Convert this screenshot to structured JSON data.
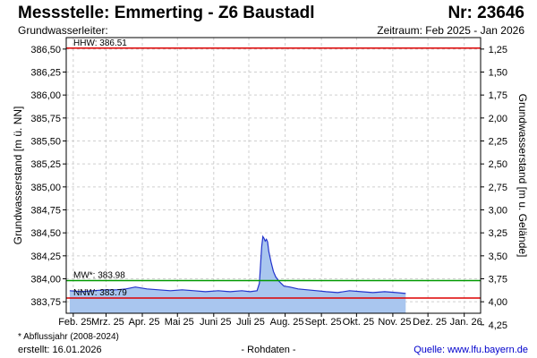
{
  "header": {
    "title": "Messstelle: Emmerting - Z6 Baustadl",
    "nr": "Nr: 23646",
    "subtitle": "Grundwasserleiter:",
    "period": "Zeitraum: Feb 2025 - Jan 2026"
  },
  "footer": {
    "footnote": "* Abflussjahr (2008-2024)",
    "created": "erstellt:  16.01.2026",
    "raw": "- Rohdaten -",
    "source": "Quelle:  www.lfu.bayern.de"
  },
  "colors": {
    "series_line": "#2233cc",
    "series_fill": "#a9c6ef",
    "hhw_line": "#dd0000",
    "nnw_line": "#dd0000",
    "mw_line": "#009900",
    "grid": "#cfcfcf"
  },
  "chart_data": {
    "type": "area",
    "ylabel": "Grundwasserstand [m ü. NN]",
    "ylabel_right": "Grundwasserstand [m u. Gelände]",
    "ylim": [
      383.625,
      386.625
    ],
    "y_ticks": [
      "383,75",
      "384,00",
      "384,25",
      "384,50",
      "384,75",
      "385,00",
      "385,25",
      "385,50",
      "385,75",
      "386,00",
      "386,25",
      "386,50"
    ],
    "y_tick_values": [
      383.75,
      384.0,
      384.25,
      384.5,
      384.75,
      385.0,
      385.25,
      385.5,
      385.75,
      386.0,
      386.25,
      386.5
    ],
    "y2_ticks": [
      "1,25",
      "1,50",
      "1,75",
      "2,00",
      "2,25",
      "2,50",
      "2,75",
      "3,00",
      "3,25",
      "3,50",
      "3,75",
      "4,00",
      "4,25"
    ],
    "y2_tick_values": [
      1.25,
      1.5,
      1.75,
      2.0,
      2.25,
      2.5,
      2.75,
      3.0,
      3.25,
      3.5,
      3.75,
      4.0,
      4.25
    ],
    "y2_surface_level": 387.75,
    "x_ticks": [
      "Feb. 25",
      "Mrz. 25",
      "Apr. 25",
      "Mai 25",
      "Juni 25",
      "Juli 25",
      "Aug. 25",
      "Sept. 25",
      "Okt. 25",
      "Nov. 25",
      "Dez. 25",
      "Jan. 26"
    ],
    "x_tick_dates": [
      "2025-02-01",
      "2025-03-01",
      "2025-04-01",
      "2025-05-01",
      "2025-06-01",
      "2025-07-01",
      "2025-08-01",
      "2025-09-01",
      "2025-10-01",
      "2025-11-01",
      "2025-12-01",
      "2026-01-01"
    ],
    "xlim": [
      "2025-01-26",
      "2026-01-15"
    ],
    "grid": true,
    "reference_lines": [
      {
        "label": "HHW: 386.51",
        "value": 386.51
      },
      {
        "label": "MW*: 383.98",
        "value": 383.98
      },
      {
        "label": "NNW: 383.79",
        "value": 383.79
      }
    ],
    "series": [
      {
        "x": [
          "2025-01-29",
          "2025-02-08",
          "2025-02-18",
          "2025-02-28",
          "2025-03-10",
          "2025-03-18",
          "2025-03-26",
          "2025-04-05",
          "2025-04-15",
          "2025-04-25",
          "2025-05-05",
          "2025-05-15",
          "2025-05-25",
          "2025-06-05",
          "2025-06-15",
          "2025-06-25",
          "2025-07-02",
          "2025-07-08",
          "2025-07-10",
          "2025-07-11",
          "2025-07-12",
          "2025-07-13",
          "2025-07-14",
          "2025-07-15",
          "2025-07-16",
          "2025-07-17",
          "2025-07-18",
          "2025-07-20",
          "2025-07-22",
          "2025-07-24",
          "2025-07-27",
          "2025-07-31",
          "2025-08-05",
          "2025-08-12",
          "2025-08-20",
          "2025-08-28",
          "2025-09-05",
          "2025-09-15",
          "2025-09-25",
          "2025-10-05",
          "2025-10-15",
          "2025-10-25",
          "2025-11-04",
          "2025-11-12"
        ],
        "values": [
          383.87,
          383.86,
          383.87,
          383.88,
          383.88,
          383.89,
          383.91,
          383.89,
          383.88,
          383.87,
          383.88,
          383.87,
          383.86,
          383.87,
          383.86,
          383.87,
          383.86,
          383.87,
          383.95,
          384.15,
          384.35,
          384.46,
          384.44,
          384.41,
          384.43,
          384.4,
          384.3,
          384.18,
          384.08,
          384.02,
          383.97,
          383.92,
          383.91,
          383.89,
          383.88,
          383.87,
          383.86,
          383.85,
          383.87,
          383.86,
          383.85,
          383.86,
          383.85,
          383.84
        ]
      }
    ]
  }
}
